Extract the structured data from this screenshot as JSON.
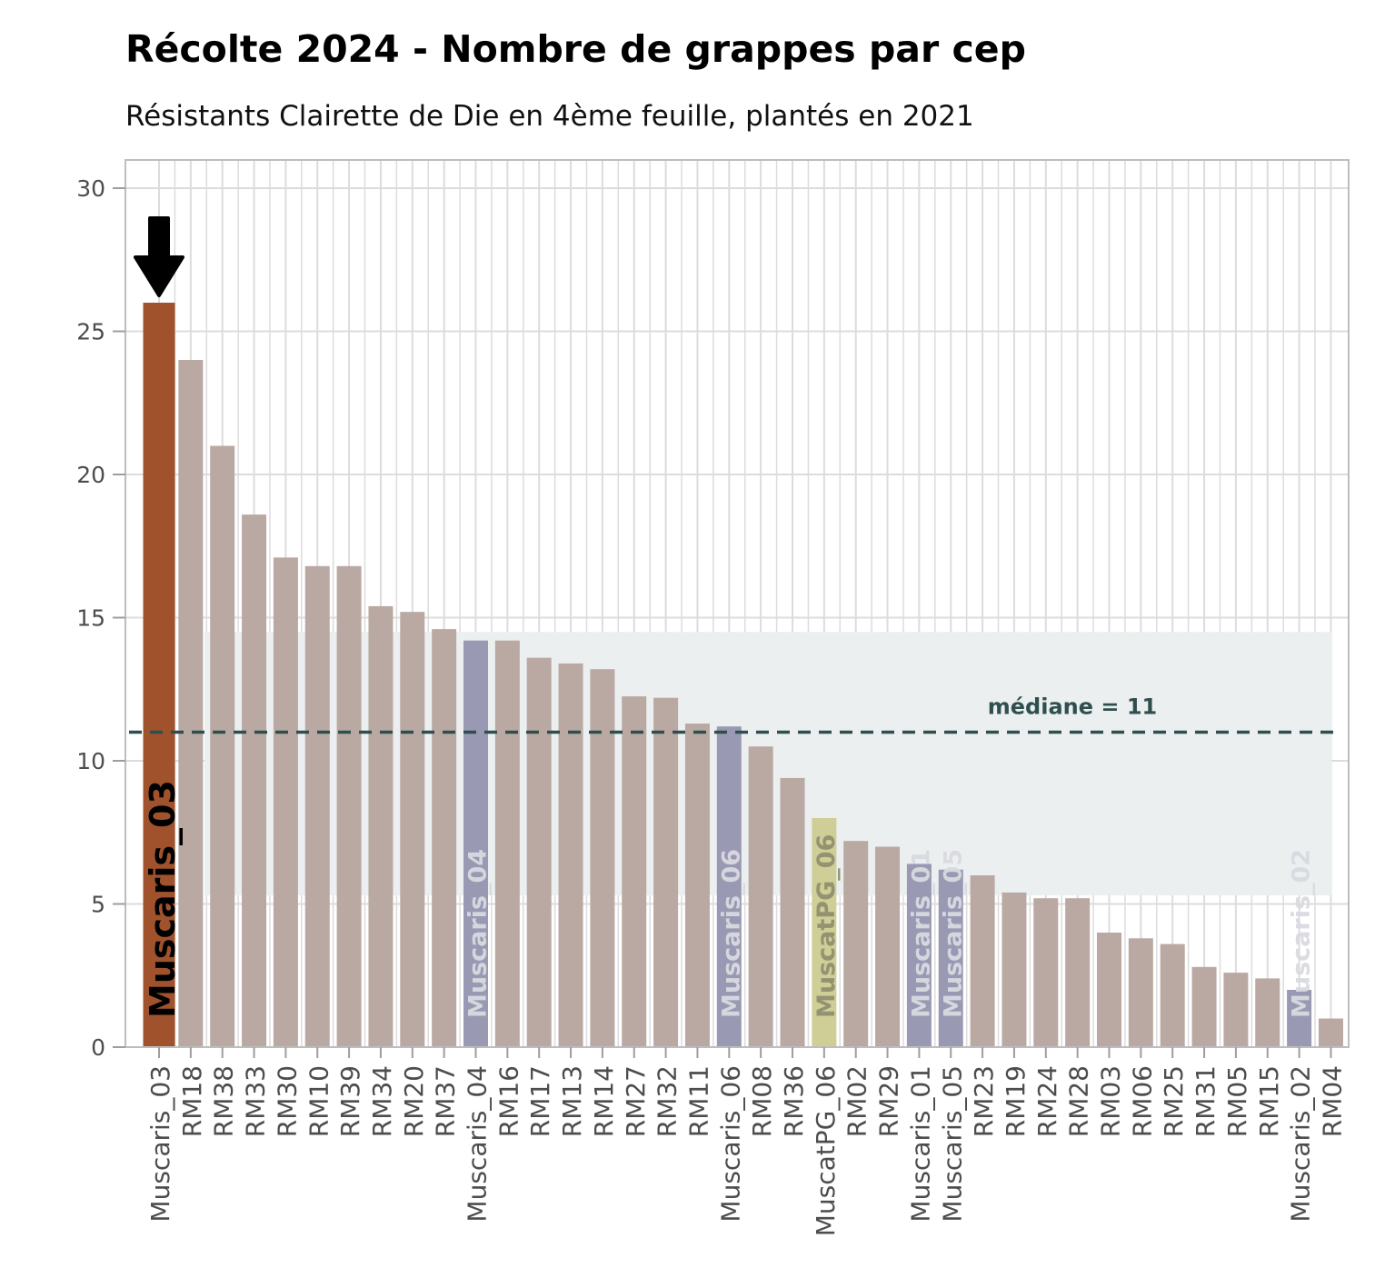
{
  "chart_data": {
    "type": "bar",
    "title": "Récolte 2024 - Nombre de grappes par cep",
    "subtitle": "Résistants Clairette de Die en 4ème feuille, plantés en 2021",
    "xlabel": "",
    "ylabel": "",
    "ylim": [
      0,
      30
    ],
    "yticks": [
      0,
      5,
      10,
      15,
      20,
      25,
      30
    ],
    "grid": true,
    "categories": [
      "Muscaris_03",
      "RM18",
      "RM38",
      "RM33",
      "RM30",
      "RM10",
      "RM39",
      "RM34",
      "RM20",
      "RM37",
      "Muscaris_04",
      "RM16",
      "RM17",
      "RM13",
      "RM14",
      "RM27",
      "RM32",
      "RM11",
      "Muscaris_06",
      "RM08",
      "RM36",
      "MuscatPG_06",
      "RM02",
      "RM29",
      "Muscaris_01",
      "Muscaris_05",
      "RM23",
      "RM19",
      "RM24",
      "RM28",
      "RM03",
      "RM06",
      "RM25",
      "RM31",
      "RM05",
      "RM15",
      "Muscaris_02",
      "RM04"
    ],
    "values": [
      26,
      24,
      21,
      18.6,
      17.1,
      16.8,
      16.8,
      15.4,
      15.2,
      14.6,
      14.2,
      14.2,
      13.6,
      13.4,
      13.2,
      12.25,
      12.2,
      11.3,
      11.2,
      10.5,
      9.4,
      8,
      7.2,
      7,
      6.4,
      6.2,
      6,
      5.4,
      5.2,
      5.2,
      4,
      3.8,
      3.6,
      2.8,
      2.6,
      2.4,
      2,
      1
    ],
    "groups": [
      "highlight",
      "RM",
      "RM",
      "RM",
      "RM",
      "RM",
      "RM",
      "RM",
      "RM",
      "RM",
      "Muscaris",
      "RM",
      "RM",
      "RM",
      "RM",
      "RM",
      "RM",
      "RM",
      "Muscaris",
      "RM",
      "RM",
      "MuscatPG",
      "RM",
      "RM",
      "Muscaris",
      "Muscaris",
      "RM",
      "RM",
      "RM",
      "RM",
      "RM",
      "RM",
      "RM",
      "RM",
      "RM",
      "RM",
      "Muscaris",
      "RM"
    ],
    "bar_labels": [
      "Muscaris_03",
      "",
      "",
      "",
      "",
      "",
      "",
      "",
      "",
      "",
      "Muscaris_04",
      "",
      "",
      "",
      "",
      "",
      "",
      "",
      "Muscaris_06",
      "",
      "",
      "MuscatPG_06",
      "",
      "",
      "Muscaris_01",
      "Muscaris_05",
      "",
      "",
      "",
      "",
      "",
      "",
      "",
      "",
      "",
      "",
      "Muscaris_02",
      ""
    ],
    "median": {
      "value": 11,
      "label": "médiane = 11"
    },
    "band": {
      "from": 5.3,
      "to": 14.5
    },
    "highlight_arrow_category": "Muscaris_03",
    "colors": {
      "highlight": "#A0522D",
      "RM": "#BAA9A2",
      "Muscaris": "#9999B3",
      "MuscatPG": "#CECE96",
      "median_line": "#2F4F4F",
      "band": "#ECEFF0",
      "grid": "#DCDCDC",
      "axis_text": "#4D4D4D"
    }
  }
}
